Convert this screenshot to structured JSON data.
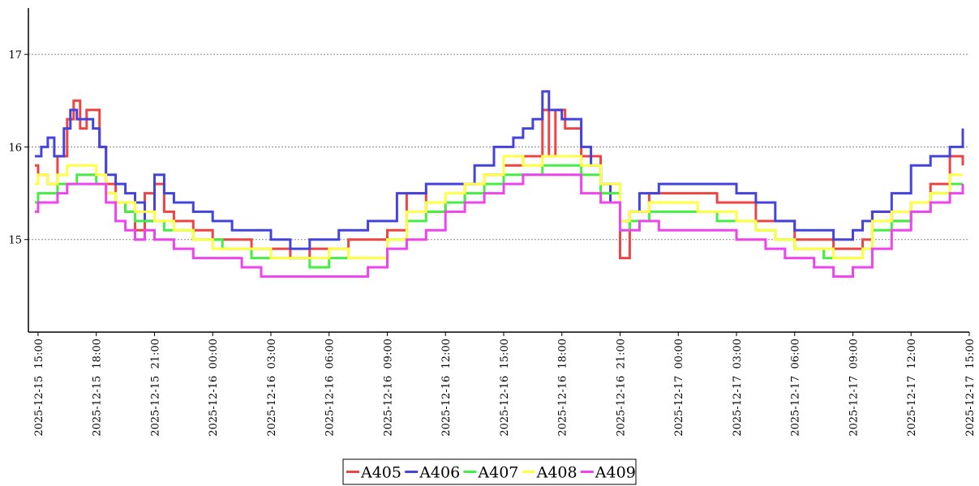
{
  "chart_data": {
    "type": "line",
    "title": "",
    "xlabel": "",
    "ylabel": "",
    "x_axis": {
      "type": "datetime",
      "min": "2025-12-15 14:30",
      "max": "2025-12-17 15:00",
      "tick_labels": [
        "2025-12-15 15:00",
        "2025-12-15 18:00",
        "2025-12-15 21:00",
        "2025-12-16 00:00",
        "2025-12-16 03:00",
        "2025-12-16 06:00",
        "2025-12-16 09:00",
        "2025-12-16 12:00",
        "2025-12-16 15:00",
        "2025-12-16 18:00",
        "2025-12-16 21:00",
        "2025-12-17 00:00",
        "2025-12-17 03:00",
        "2025-12-17 06:00",
        "2025-12-17 09:00",
        "2025-12-17 12:00",
        "2025-12-17 15:00"
      ]
    },
    "y_axis": {
      "min": 14,
      "max": 17.5,
      "ticks": [
        "15",
        "16",
        "17"
      ],
      "grid": true
    },
    "legend": {
      "position": "bottom-center"
    },
    "series": [
      {
        "name": "A405",
        "color": "#ee4444",
        "step": true,
        "points": [
          [
            "2025-12-15 14:50",
            15.8
          ],
          [
            "2025-12-15 15:00",
            15.7
          ],
          [
            "2025-12-15 15:30",
            15.6
          ],
          [
            "2025-12-15 16:00",
            15.9
          ],
          [
            "2025-12-15 16:30",
            16.3
          ],
          [
            "2025-12-15 16:50",
            16.5
          ],
          [
            "2025-12-15 17:10",
            16.2
          ],
          [
            "2025-12-15 17:30",
            16.4
          ],
          [
            "2025-12-15 18:10",
            16.0
          ],
          [
            "2025-12-15 18:30",
            15.6
          ],
          [
            "2025-12-15 19:00",
            15.4
          ],
          [
            "2025-12-15 19:30",
            15.3
          ],
          [
            "2025-12-15 20:00",
            15.1
          ],
          [
            "2025-12-15 20:30",
            15.5
          ],
          [
            "2025-12-15 21:00",
            15.6
          ],
          [
            "2025-12-15 21:30",
            15.3
          ],
          [
            "2025-12-15 22:00",
            15.2
          ],
          [
            "2025-12-15 23:00",
            15.1
          ],
          [
            "2025-12-16 00:00",
            15.0
          ],
          [
            "2025-12-16 02:00",
            14.9
          ],
          [
            "2025-12-16 04:00",
            14.8
          ],
          [
            "2025-12-16 05:00",
            14.9
          ],
          [
            "2025-12-16 07:00",
            15.0
          ],
          [
            "2025-12-16 09:00",
            15.1
          ],
          [
            "2025-12-16 10:00",
            15.5
          ],
          [
            "2025-12-16 11:00",
            15.3
          ],
          [
            "2025-12-16 12:00",
            15.4
          ],
          [
            "2025-12-16 13:00",
            15.6
          ],
          [
            "2025-12-16 14:00",
            15.7
          ],
          [
            "2025-12-16 15:00",
            15.8
          ],
          [
            "2025-12-16 16:00",
            15.9
          ],
          [
            "2025-12-16 17:00",
            16.4
          ],
          [
            "2025-12-16 17:20",
            15.9
          ],
          [
            "2025-12-16 17:40",
            16.4
          ],
          [
            "2025-12-16 18:10",
            16.2
          ],
          [
            "2025-12-16 19:00",
            15.9
          ],
          [
            "2025-12-16 20:00",
            15.6
          ],
          [
            "2025-12-16 21:00",
            14.8
          ],
          [
            "2025-12-16 21:30",
            15.3
          ],
          [
            "2025-12-16 22:30",
            15.5
          ],
          [
            "2025-12-17 02:00",
            15.4
          ],
          [
            "2025-12-17 04:00",
            15.2
          ],
          [
            "2025-12-17 06:00",
            15.0
          ],
          [
            "2025-12-17 08:00",
            14.9
          ],
          [
            "2025-12-17 09:30",
            15.0
          ],
          [
            "2025-12-17 10:00",
            15.3
          ],
          [
            "2025-12-17 11:00",
            15.2
          ],
          [
            "2025-12-17 12:00",
            15.4
          ],
          [
            "2025-12-17 13:00",
            15.6
          ],
          [
            "2025-12-17 14:00",
            15.9
          ],
          [
            "2025-12-17 14:40",
            15.8
          ]
        ]
      },
      {
        "name": "A406",
        "color": "#4444dd",
        "step": true,
        "points": [
          [
            "2025-12-15 14:50",
            15.9
          ],
          [
            "2025-12-15 15:10",
            16.0
          ],
          [
            "2025-12-15 15:30",
            16.1
          ],
          [
            "2025-12-15 15:50",
            15.9
          ],
          [
            "2025-12-15 16:20",
            16.2
          ],
          [
            "2025-12-15 16:40",
            16.4
          ],
          [
            "2025-12-15 17:00",
            16.3
          ],
          [
            "2025-12-15 17:50",
            16.2
          ],
          [
            "2025-12-15 18:10",
            16.0
          ],
          [
            "2025-12-15 18:30",
            15.7
          ],
          [
            "2025-12-15 19:00",
            15.6
          ],
          [
            "2025-12-15 19:30",
            15.5
          ],
          [
            "2025-12-15 20:00",
            15.4
          ],
          [
            "2025-12-15 20:30",
            15.2
          ],
          [
            "2025-12-15 21:00",
            15.7
          ],
          [
            "2025-12-15 21:30",
            15.5
          ],
          [
            "2025-12-15 22:00",
            15.4
          ],
          [
            "2025-12-15 23:00",
            15.3
          ],
          [
            "2025-12-16 00:00",
            15.2
          ],
          [
            "2025-12-16 01:00",
            15.1
          ],
          [
            "2025-12-16 03:00",
            15.0
          ],
          [
            "2025-12-16 04:00",
            14.9
          ],
          [
            "2025-12-16 05:00",
            15.0
          ],
          [
            "2025-12-16 06:30",
            15.1
          ],
          [
            "2025-12-16 08:00",
            15.2
          ],
          [
            "2025-12-16 09:30",
            15.5
          ],
          [
            "2025-12-16 11:00",
            15.6
          ],
          [
            "2025-12-16 12:30",
            15.6
          ],
          [
            "2025-12-16 13:30",
            15.8
          ],
          [
            "2025-12-16 14:30",
            16.0
          ],
          [
            "2025-12-16 15:30",
            16.1
          ],
          [
            "2025-12-16 16:00",
            16.2
          ],
          [
            "2025-12-16 16:30",
            16.3
          ],
          [
            "2025-12-16 17:00",
            16.6
          ],
          [
            "2025-12-16 17:20",
            16.4
          ],
          [
            "2025-12-16 18:00",
            16.3
          ],
          [
            "2025-12-16 19:00",
            16.0
          ],
          [
            "2025-12-16 19:30",
            15.8
          ],
          [
            "2025-12-16 20:00",
            15.6
          ],
          [
            "2025-12-16 20:30",
            15.4
          ],
          [
            "2025-12-16 21:00",
            15.2
          ],
          [
            "2025-12-16 21:30",
            15.3
          ],
          [
            "2025-12-16 22:00",
            15.5
          ],
          [
            "2025-12-16 23:00",
            15.6
          ],
          [
            "2025-12-17 01:00",
            15.6
          ],
          [
            "2025-12-17 03:00",
            15.5
          ],
          [
            "2025-12-17 04:00",
            15.4
          ],
          [
            "2025-12-17 05:00",
            15.2
          ],
          [
            "2025-12-17 06:00",
            15.1
          ],
          [
            "2025-12-17 08:00",
            15.0
          ],
          [
            "2025-12-17 09:00",
            15.1
          ],
          [
            "2025-12-17 09:30",
            15.2
          ],
          [
            "2025-12-17 10:00",
            15.3
          ],
          [
            "2025-12-17 11:00",
            15.5
          ],
          [
            "2025-12-17 12:00",
            15.8
          ],
          [
            "2025-12-17 13:00",
            15.9
          ],
          [
            "2025-12-17 14:00",
            16.0
          ],
          [
            "2025-12-17 14:40",
            16.2
          ]
        ]
      },
      {
        "name": "A407",
        "color": "#44ee44",
        "step": true,
        "points": [
          [
            "2025-12-15 14:50",
            15.4
          ],
          [
            "2025-12-15 15:00",
            15.5
          ],
          [
            "2025-12-15 15:30",
            15.5
          ],
          [
            "2025-12-15 16:00",
            15.6
          ],
          [
            "2025-12-15 17:00",
            15.7
          ],
          [
            "2025-12-15 18:00",
            15.6
          ],
          [
            "2025-12-15 18:30",
            15.5
          ],
          [
            "2025-12-15 19:00",
            15.4
          ],
          [
            "2025-12-15 19:30",
            15.3
          ],
          [
            "2025-12-15 20:00",
            15.2
          ],
          [
            "2025-12-15 21:30",
            15.1
          ],
          [
            "2025-12-15 23:00",
            15.0
          ],
          [
            "2025-12-16 00:30",
            14.9
          ],
          [
            "2025-12-16 02:00",
            14.8
          ],
          [
            "2025-12-16 04:30",
            14.8
          ],
          [
            "2025-12-16 05:00",
            14.7
          ],
          [
            "2025-12-16 06:00",
            14.8
          ],
          [
            "2025-12-16 09:00",
            15.0
          ],
          [
            "2025-12-16 10:00",
            15.2
          ],
          [
            "2025-12-16 11:00",
            15.3
          ],
          [
            "2025-12-16 12:00",
            15.4
          ],
          [
            "2025-12-16 13:00",
            15.5
          ],
          [
            "2025-12-16 14:00",
            15.6
          ],
          [
            "2025-12-16 15:00",
            15.7
          ],
          [
            "2025-12-16 16:00",
            15.7
          ],
          [
            "2025-12-16 17:00",
            15.8
          ],
          [
            "2025-12-16 19:00",
            15.7
          ],
          [
            "2025-12-16 20:00",
            15.5
          ],
          [
            "2025-12-16 21:00",
            15.1
          ],
          [
            "2025-12-16 21:30",
            15.2
          ],
          [
            "2025-12-16 22:30",
            15.3
          ],
          [
            "2025-12-17 01:00",
            15.3
          ],
          [
            "2025-12-17 02:00",
            15.2
          ],
          [
            "2025-12-17 04:00",
            15.1
          ],
          [
            "2025-12-17 05:00",
            15.0
          ],
          [
            "2025-12-17 06:00",
            14.9
          ],
          [
            "2025-12-17 07:30",
            14.8
          ],
          [
            "2025-12-17 09:30",
            14.9
          ],
          [
            "2025-12-17 10:00",
            15.1
          ],
          [
            "2025-12-17 11:00",
            15.2
          ],
          [
            "2025-12-17 12:00",
            15.3
          ],
          [
            "2025-12-17 13:00",
            15.5
          ],
          [
            "2025-12-17 14:00",
            15.6
          ],
          [
            "2025-12-17 14:40",
            15.6
          ]
        ]
      },
      {
        "name": "A408",
        "color": "#ffff44",
        "step": true,
        "points": [
          [
            "2025-12-15 14:50",
            15.6
          ],
          [
            "2025-12-15 15:00",
            15.7
          ],
          [
            "2025-12-15 15:30",
            15.6
          ],
          [
            "2025-12-15 16:00",
            15.7
          ],
          [
            "2025-12-15 16:30",
            15.8
          ],
          [
            "2025-12-15 18:00",
            15.7
          ],
          [
            "2025-12-15 18:30",
            15.5
          ],
          [
            "2025-12-15 19:00",
            15.4
          ],
          [
            "2025-12-15 20:00",
            15.3
          ],
          [
            "2025-12-15 21:00",
            15.2
          ],
          [
            "2025-12-15 22:00",
            15.1
          ],
          [
            "2025-12-15 23:00",
            15.0
          ],
          [
            "2025-12-16 00:00",
            14.9
          ],
          [
            "2025-12-16 03:00",
            14.8
          ],
          [
            "2025-12-16 06:00",
            14.9
          ],
          [
            "2025-12-16 07:00",
            14.8
          ],
          [
            "2025-12-16 09:00",
            15.0
          ],
          [
            "2025-12-16 10:00",
            15.3
          ],
          [
            "2025-12-16 11:00",
            15.4
          ],
          [
            "2025-12-16 12:00",
            15.5
          ],
          [
            "2025-12-16 13:00",
            15.6
          ],
          [
            "2025-12-16 14:00",
            15.7
          ],
          [
            "2025-12-16 15:00",
            15.9
          ],
          [
            "2025-12-16 16:00",
            15.8
          ],
          [
            "2025-12-16 17:00",
            15.9
          ],
          [
            "2025-12-16 19:00",
            15.8
          ],
          [
            "2025-12-16 20:00",
            15.6
          ],
          [
            "2025-12-16 21:00",
            15.2
          ],
          [
            "2025-12-16 21:30",
            15.3
          ],
          [
            "2025-12-16 22:30",
            15.4
          ],
          [
            "2025-12-17 00:00",
            15.4
          ],
          [
            "2025-12-17 01:00",
            15.3
          ],
          [
            "2025-12-17 03:00",
            15.2
          ],
          [
            "2025-12-17 04:00",
            15.1
          ],
          [
            "2025-12-17 05:00",
            15.0
          ],
          [
            "2025-12-17 06:00",
            14.9
          ],
          [
            "2025-12-17 08:00",
            14.8
          ],
          [
            "2025-12-17 09:30",
            14.9
          ],
          [
            "2025-12-17 10:00",
            15.2
          ],
          [
            "2025-12-17 11:00",
            15.3
          ],
          [
            "2025-12-17 12:00",
            15.4
          ],
          [
            "2025-12-17 13:00",
            15.5
          ],
          [
            "2025-12-17 14:00",
            15.7
          ],
          [
            "2025-12-17 14:40",
            15.7
          ]
        ]
      },
      {
        "name": "A409",
        "color": "#ee44ee",
        "step": true,
        "points": [
          [
            "2025-12-15 14:50",
            15.3
          ],
          [
            "2025-12-15 15:00",
            15.4
          ],
          [
            "2025-12-15 16:00",
            15.5
          ],
          [
            "2025-12-15 16:30",
            15.6
          ],
          [
            "2025-12-15 18:00",
            15.6
          ],
          [
            "2025-12-15 18:30",
            15.4
          ],
          [
            "2025-12-15 19:00",
            15.2
          ],
          [
            "2025-12-15 19:30",
            15.1
          ],
          [
            "2025-12-15 20:00",
            15.0
          ],
          [
            "2025-12-15 20:30",
            15.1
          ],
          [
            "2025-12-15 21:00",
            15.0
          ],
          [
            "2025-12-15 22:00",
            14.9
          ],
          [
            "2025-12-15 23:00",
            14.8
          ],
          [
            "2025-12-16 01:30",
            14.7
          ],
          [
            "2025-12-16 02:30",
            14.6
          ],
          [
            "2025-12-16 08:00",
            14.7
          ],
          [
            "2025-12-16 09:00",
            14.9
          ],
          [
            "2025-12-16 10:00",
            15.0
          ],
          [
            "2025-12-16 11:00",
            15.1
          ],
          [
            "2025-12-16 12:00",
            15.3
          ],
          [
            "2025-12-16 13:00",
            15.4
          ],
          [
            "2025-12-16 14:00",
            15.5
          ],
          [
            "2025-12-16 15:00",
            15.6
          ],
          [
            "2025-12-16 16:00",
            15.7
          ],
          [
            "2025-12-16 18:00",
            15.7
          ],
          [
            "2025-12-16 19:00",
            15.5
          ],
          [
            "2025-12-16 20:00",
            15.4
          ],
          [
            "2025-12-16 21:00",
            15.1
          ],
          [
            "2025-12-16 22:00",
            15.2
          ],
          [
            "2025-12-16 23:00",
            15.1
          ],
          [
            "2025-12-17 03:00",
            15.0
          ],
          [
            "2025-12-17 04:30",
            14.9
          ],
          [
            "2025-12-17 05:30",
            14.8
          ],
          [
            "2025-12-17 07:00",
            14.7
          ],
          [
            "2025-12-17 08:00",
            14.6
          ],
          [
            "2025-12-17 09:00",
            14.7
          ],
          [
            "2025-12-17 10:00",
            14.9
          ],
          [
            "2025-12-17 11:00",
            15.1
          ],
          [
            "2025-12-17 12:00",
            15.3
          ],
          [
            "2025-12-17 13:00",
            15.4
          ],
          [
            "2025-12-17 14:00",
            15.5
          ],
          [
            "2025-12-17 14:40",
            15.6
          ]
        ]
      }
    ]
  }
}
